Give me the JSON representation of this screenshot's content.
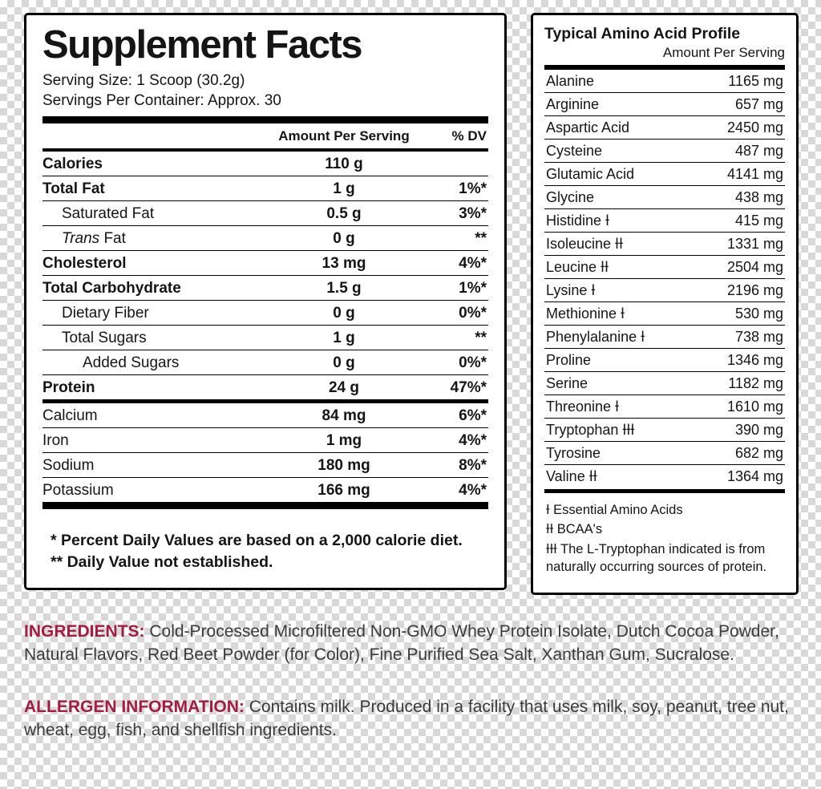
{
  "supplement_facts": {
    "title": "Supplement Facts",
    "serving_size": "Serving Size: 1 Scoop (30.2g)",
    "servings_per_container": "Servings Per Container: Approx. 30",
    "col_amount": "Amount Per Serving",
    "col_dv": "% DV",
    "rows": [
      {
        "label": "Calories",
        "amount": "110 g",
        "dv": "",
        "bold": true,
        "indent": 0,
        "rule": "thin"
      },
      {
        "label": "Total Fat",
        "amount": "1 g",
        "dv": "1%*",
        "bold": true,
        "indent": 0,
        "rule": "thin"
      },
      {
        "label": "Saturated Fat",
        "amount": "0.5 g",
        "dv": "3%*",
        "bold": false,
        "indent": 1,
        "rule": "thin"
      },
      {
        "label": "Trans Fat",
        "amount": "0 g",
        "dv": "**",
        "bold": false,
        "indent": 1,
        "rule": "thin",
        "italic_first": true
      },
      {
        "label": "Cholesterol",
        "amount": "13 mg",
        "dv": "4%*",
        "bold": true,
        "indent": 0,
        "rule": "thin"
      },
      {
        "label": "Total Carbohydrate",
        "amount": "1.5 g",
        "dv": "1%*",
        "bold": true,
        "indent": 0,
        "rule": "thin"
      },
      {
        "label": "Dietary Fiber",
        "amount": "0 g",
        "dv": "0%*",
        "bold": false,
        "indent": 1,
        "rule": "thin"
      },
      {
        "label": "Total Sugars",
        "amount": "1 g",
        "dv": "**",
        "bold": false,
        "indent": 1,
        "rule": "thin"
      },
      {
        "label": "Added Sugars",
        "amount": "0 g",
        "dv": "0%*",
        "bold": false,
        "indent": 2,
        "rule": "thin"
      },
      {
        "label": "Protein",
        "amount": "24 g",
        "dv": "47%*",
        "bold": true,
        "indent": 0,
        "rule": "medium"
      },
      {
        "label": "Calcium",
        "amount": "84 mg",
        "dv": "6%*",
        "bold": false,
        "indent": 0,
        "rule": "thin"
      },
      {
        "label": "Iron",
        "amount": "1 mg",
        "dv": "4%*",
        "bold": false,
        "indent": 0,
        "rule": "thin"
      },
      {
        "label": "Sodium",
        "amount": "180 mg",
        "dv": "8%*",
        "bold": false,
        "indent": 0,
        "rule": "thin"
      },
      {
        "label": "Potassium",
        "amount": "166 mg",
        "dv": "4%*",
        "bold": false,
        "indent": 0,
        "rule": "thick"
      }
    ],
    "footnotes": [
      "* Percent Daily Values are based on a 2,000 calorie diet.",
      "** Daily Value not established."
    ]
  },
  "amino_profile": {
    "title": "Typical Amino Acid Profile",
    "subtitle": "Amount Per Serving",
    "rows": [
      {
        "name": "Alanine",
        "amount": "1165 mg"
      },
      {
        "name": "Arginine",
        "amount": "657 mg"
      },
      {
        "name": "Aspartic Acid",
        "amount": "2450 mg"
      },
      {
        "name": "Cysteine",
        "amount": "487 mg"
      },
      {
        "name": "Glutamic Acid",
        "amount": "4141 mg"
      },
      {
        "name": "Glycine",
        "amount": "438 mg"
      },
      {
        "name": "Histidine Ɨ",
        "amount": "415 mg"
      },
      {
        "name": "Isoleucine ƗƗ",
        "amount": "1331 mg"
      },
      {
        "name": "Leucine ƗƗ",
        "amount": "2504 mg"
      },
      {
        "name": "Lysine Ɨ",
        "amount": "2196 mg"
      },
      {
        "name": "Methionine Ɨ",
        "amount": "530 mg"
      },
      {
        "name": "Phenylalanine Ɨ",
        "amount": "738 mg"
      },
      {
        "name": "Proline",
        "amount": "1346 mg"
      },
      {
        "name": "Serine",
        "amount": "1182 mg"
      },
      {
        "name": "Threonine Ɨ",
        "amount": "1610 mg"
      },
      {
        "name": "Tryptophan ƗƗƗ",
        "amount": "390 mg"
      },
      {
        "name": "Tyrosine",
        "amount": "682 mg"
      },
      {
        "name": "Valine ƗƗ",
        "amount": "1364 mg"
      }
    ],
    "footnotes": [
      "Ɨ Essential Amino Acids",
      "ƗƗ BCAA's",
      "ƗƗƗ The L-Tryptophan indicated is from naturally occurring sources of protein."
    ]
  },
  "ingredients": {
    "heading": "INGREDIENTS:",
    "text": " Cold-Processed Microfiltered Non-GMO Whey Protein Isolate, Dutch Cocoa Powder, Natural Flavors, Red Beet Powder (for Color), Fine Purified Sea Salt, Xanthan Gum, Sucralose."
  },
  "allergen": {
    "heading": "ALLERGEN INFORMATION:",
    "text": " Contains milk. Produced in a facility that uses milk, soy, peanut, tree nut, wheat, egg, fish, and shellfish ingredients."
  },
  "colors": {
    "accent": "#A51C3C",
    "panel_border": "#000000",
    "checker_gray": "#D8D8D8"
  }
}
